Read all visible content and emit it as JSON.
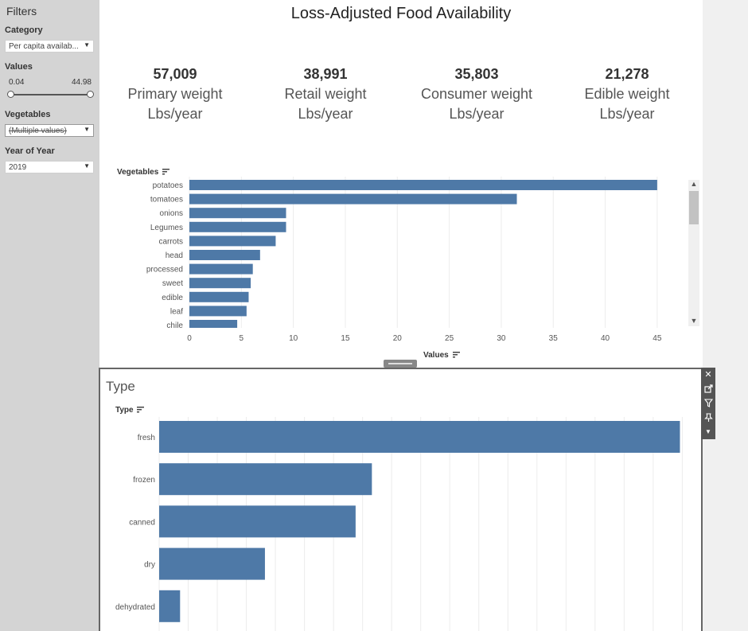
{
  "sidebar": {
    "title": "Filters",
    "category": {
      "label": "Category",
      "value": "Per capita availab..."
    },
    "values": {
      "label": "Values",
      "min": "0.04",
      "max": "44.98"
    },
    "vegetables": {
      "label": "Vegetables",
      "value": "(Multiple values)"
    },
    "year": {
      "label": "Year of Year",
      "value": "2019"
    }
  },
  "dashboard": {
    "title": "Loss-Adjusted Food Availability",
    "kpis": [
      {
        "value": "57,009",
        "label": "Primary weight",
        "unit": "Lbs/year"
      },
      {
        "value": "38,991",
        "label": "Retail weight",
        "unit": "Lbs/year"
      },
      {
        "value": "35,803",
        "label": "Consumer weight",
        "unit": "Lbs/year"
      },
      {
        "value": "21,278",
        "label": "Edible weight",
        "unit": "Lbs/year"
      }
    ]
  },
  "veg_chart_header": "Vegetables",
  "veg_axis_title": "Values",
  "type_panel": {
    "title": "Type",
    "header": "Type"
  },
  "colors": {
    "bar": "#4e79a7",
    "sidebar_bg": "#d4d4d4",
    "toolstrip_bg": "#555555"
  },
  "icons": [
    "sort-icon",
    "close-icon",
    "popout-icon",
    "filter-icon",
    "pin-icon",
    "more-options-icon",
    "chevron-down-icon",
    "scroll-up-icon",
    "scroll-down-icon"
  ],
  "chart_data": [
    {
      "type": "bar",
      "orientation": "horizontal",
      "categories": [
        "potatoes",
        "tomatoes",
        "onions",
        "Legumes",
        "carrots",
        "head",
        "processed",
        "sweet",
        "edible",
        "leaf",
        "chile"
      ],
      "values": [
        45.0,
        31.5,
        9.3,
        9.3,
        8.3,
        6.8,
        6.1,
        5.9,
        5.7,
        5.5,
        4.6
      ],
      "xlabel": "Values",
      "ylabel": "Vegetables",
      "xticks": [
        0,
        5,
        10,
        15,
        20,
        25,
        30,
        35,
        40,
        45
      ],
      "xlim": [
        0,
        47
      ]
    },
    {
      "type": "bar",
      "orientation": "horizontal",
      "title": "Type",
      "categories": [
        "fresh",
        "frozen",
        "canned",
        "dry",
        "dehydrated"
      ],
      "values": [
        44.8,
        18.3,
        16.9,
        9.1,
        1.8
      ],
      "ylabel": "Type",
      "xlim": [
        0,
        46
      ]
    }
  ]
}
